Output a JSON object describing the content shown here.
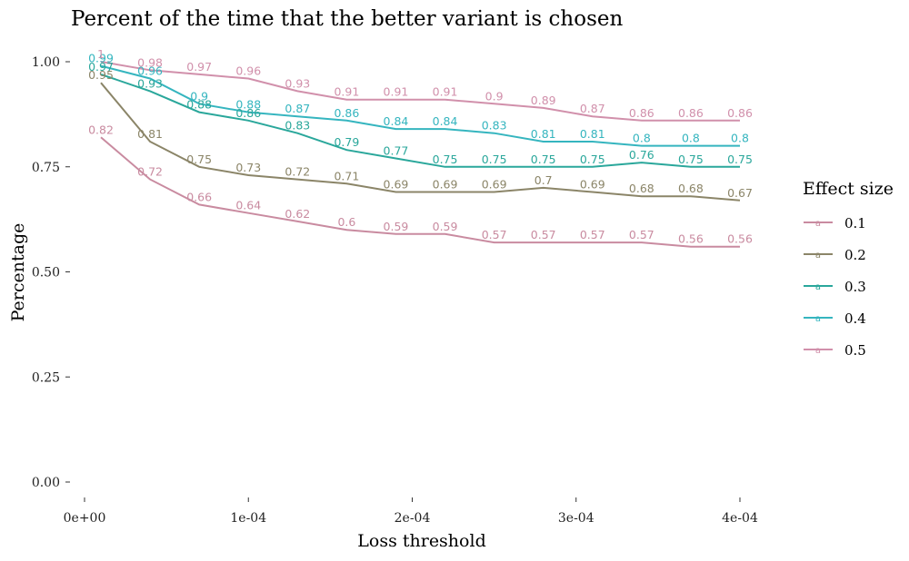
{
  "chart_data": {
    "type": "line",
    "title": "Percent of the time that the better variant is chosen",
    "xlabel": "Loss threshold",
    "ylabel": "Percentage",
    "xlim": [
      -5e-07,
      0.000405
    ],
    "ylim": [
      0,
      1.05
    ],
    "x_ticks": [
      0,
      0.0001,
      0.0002,
      0.0003,
      0.0004
    ],
    "x_tick_labels": [
      "0e+00",
      "1e-04",
      "2e-04",
      "3e-04",
      "4e-04"
    ],
    "y_ticks": [
      0,
      0.25,
      0.5,
      0.75,
      1.0
    ],
    "y_tick_labels": [
      "0.00",
      "0.25",
      "0.50",
      "0.75",
      "1.00"
    ],
    "grid": false,
    "legend": {
      "title": "Effect size",
      "position": "right",
      "key_glyph": "a"
    },
    "x": [
      1e-05,
      4e-05,
      7e-05,
      0.0001,
      0.00013,
      0.00016,
      0.00019,
      0.00022,
      0.00025,
      0.00028,
      0.00031,
      0.00034,
      0.00037,
      0.0004
    ],
    "series": [
      {
        "name": "0.1",
        "color": "#c98ba0",
        "values": [
          0.82,
          0.72,
          0.66,
          0.64,
          0.62,
          0.6,
          0.59,
          0.59,
          0.57,
          0.57,
          0.57,
          0.57,
          0.56,
          0.56
        ],
        "labels": [
          "0.82",
          "0.72",
          "0.66",
          "0.64",
          "0.62",
          "0.6",
          "0.59",
          "0.59",
          "0.57",
          "0.57",
          "0.57",
          "0.57",
          "0.56",
          "0.56"
        ]
      },
      {
        "name": "0.2",
        "color": "#8b8568",
        "values": [
          0.95,
          0.81,
          0.75,
          0.73,
          0.72,
          0.71,
          0.69,
          0.69,
          0.69,
          0.7,
          0.69,
          0.68,
          0.68,
          0.67
        ],
        "labels": [
          "0.95",
          "0.81",
          "0.75",
          "0.73",
          "0.72",
          "0.71",
          "0.69",
          "0.69",
          "0.69",
          "0.7",
          "0.69",
          "0.68",
          "0.68",
          "0.67"
        ]
      },
      {
        "name": "0.3",
        "color": "#2aa79b",
        "values": [
          0.97,
          0.93,
          0.88,
          0.86,
          0.83,
          0.79,
          0.77,
          0.75,
          0.75,
          0.75,
          0.75,
          0.76,
          0.75,
          0.75
        ],
        "labels": [
          "0.97",
          "0.93",
          "0.88",
          "0.86",
          "0.83",
          "0.79",
          "0.77",
          "0.75",
          "0.75",
          "0.75",
          "0.75",
          "0.76",
          "0.75",
          "0.75"
        ]
      },
      {
        "name": "0.4",
        "color": "#35b5bf",
        "values": [
          0.99,
          0.96,
          0.9,
          0.88,
          0.87,
          0.86,
          0.84,
          0.84,
          0.83,
          0.81,
          0.81,
          0.8,
          0.8,
          0.8
        ],
        "labels": [
          "0.99",
          "0.96",
          "0.9",
          "0.88",
          "0.87",
          "0.86",
          "0.84",
          "0.84",
          "0.83",
          "0.81",
          "0.81",
          "0.8",
          "0.8",
          "0.8"
        ]
      },
      {
        "name": "0.5",
        "color": "#d190ab",
        "values": [
          1.0,
          0.98,
          0.97,
          0.96,
          0.93,
          0.91,
          0.91,
          0.91,
          0.9,
          0.89,
          0.87,
          0.86,
          0.86,
          0.86
        ],
        "labels": [
          "1",
          "0.98",
          "0.97",
          "0.96",
          "0.93",
          "0.91",
          "0.91",
          "0.91",
          "0.9",
          "0.89",
          "0.87",
          "0.86",
          "0.86",
          "0.86"
        ]
      }
    ]
  }
}
